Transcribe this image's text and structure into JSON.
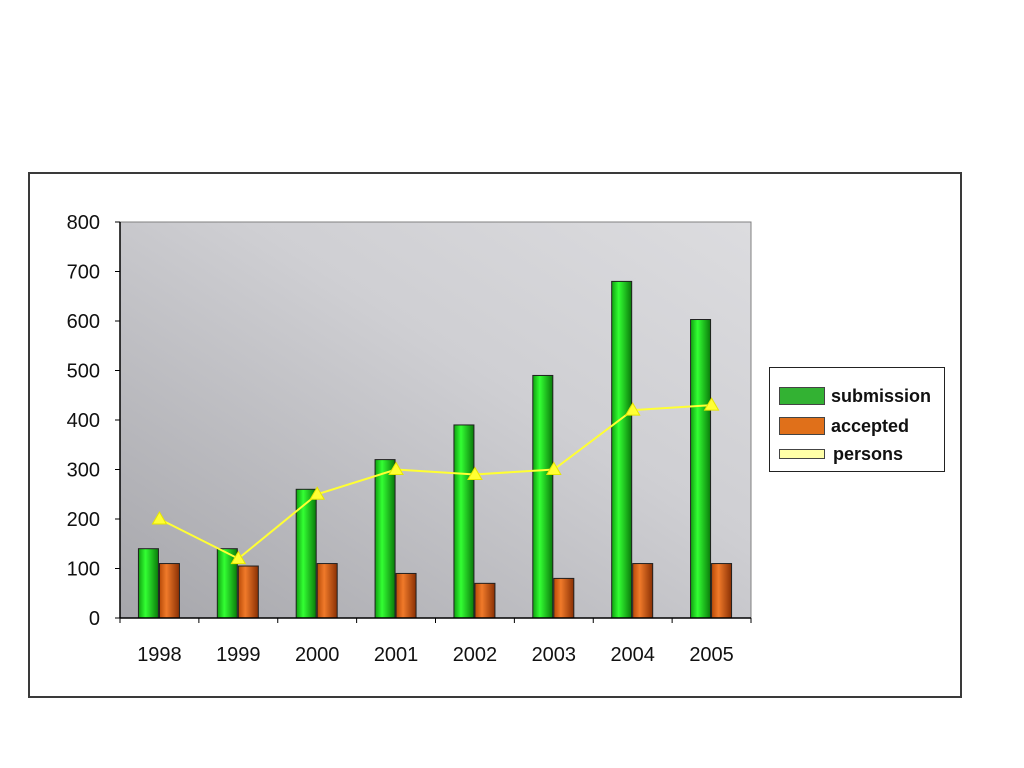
{
  "chart_data": {
    "type": "bar",
    "title": "",
    "xlabel": "",
    "ylabel": "",
    "categories": [
      "1998",
      "1999",
      "2000",
      "2001",
      "2002",
      "2003",
      "2004",
      "2005"
    ],
    "series": [
      {
        "name": "submission",
        "type": "bar",
        "color": "#22c322",
        "values": [
          140,
          140,
          260,
          320,
          390,
          490,
          680,
          603
        ]
      },
      {
        "name": "accepted",
        "type": "bar",
        "color": "#e06010",
        "values": [
          110,
          105,
          110,
          90,
          70,
          80,
          110,
          110
        ]
      },
      {
        "name": "persons",
        "type": "line",
        "color": "#ffff33",
        "values": [
          200,
          120,
          250,
          300,
          290,
          300,
          420,
          430
        ]
      }
    ],
    "ylim": [
      0,
      800
    ],
    "yticks": [
      0,
      100,
      200,
      300,
      400,
      500,
      600,
      700,
      800
    ],
    "grid": false,
    "legend_position": "right"
  },
  "legend": {
    "items": [
      {
        "label": "submission",
        "color": "#33b233"
      },
      {
        "label": "accepted",
        "color": "#e0701a"
      },
      {
        "label": "persons",
        "color": "#ffffa8"
      }
    ]
  }
}
